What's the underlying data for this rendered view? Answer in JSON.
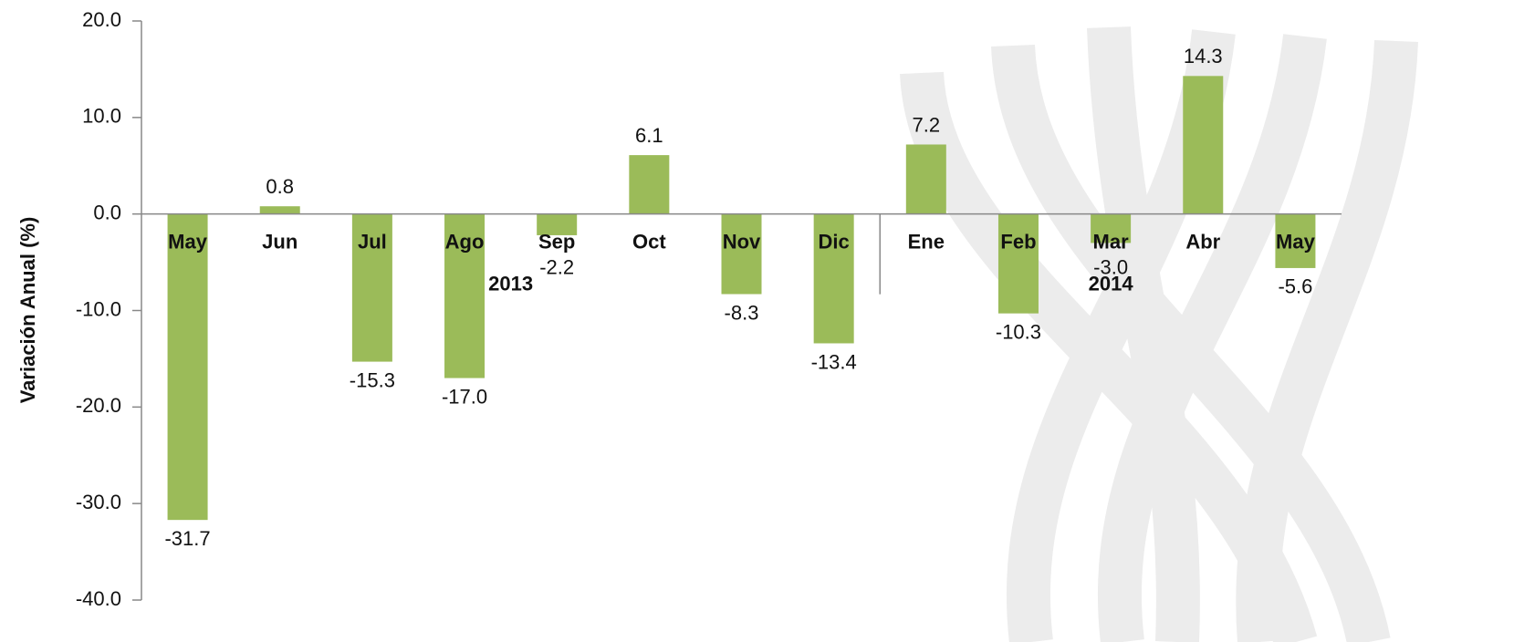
{
  "chart_data": {
    "type": "bar",
    "y_label": "Variación Anual (%)",
    "categories": [
      "May",
      "Jun",
      "Jul",
      "Ago",
      "Sep",
      "Oct",
      "Nov",
      "Dic",
      "Ene",
      "Feb",
      "Mar",
      "Abr",
      "May"
    ],
    "values": [
      -31.7,
      0.8,
      -15.3,
      -17.0,
      -2.2,
      6.1,
      -8.3,
      -13.4,
      7.2,
      -10.3,
      -3.0,
      14.3,
      -5.6
    ],
    "value_labels": [
      "-31.7",
      "0.8",
      "-15.3",
      "-17.0",
      "-2.2",
      "6.1",
      "-8.3",
      "-13.4",
      "7.2",
      "-10.3",
      "-3.0",
      "14.3",
      "-5.6"
    ],
    "groups": [
      {
        "label": "2013",
        "count": 8
      },
      {
        "label": "2014",
        "count": 5
      }
    ],
    "color": "#9bbb59",
    "ylim": [
      -40,
      20
    ],
    "yticks": [
      {
        "value": 20,
        "label": "20.0"
      },
      {
        "value": 10,
        "label": "10.0"
      },
      {
        "value": 0,
        "label": "0.0"
      },
      {
        "value": -10,
        "label": "-10.0"
      },
      {
        "value": -20,
        "label": "-20.0"
      },
      {
        "value": -30,
        "label": "-30.0"
      },
      {
        "value": -40,
        "label": "-40.0"
      }
    ]
  }
}
